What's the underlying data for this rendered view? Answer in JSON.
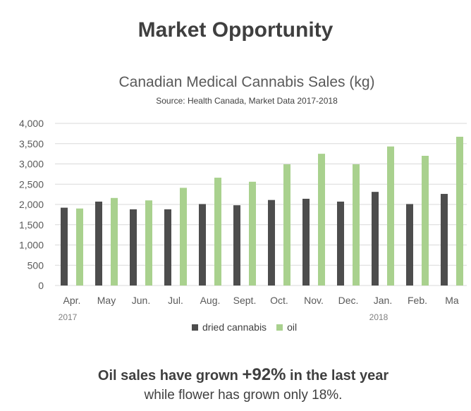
{
  "page": {
    "title": "Market Opportunity"
  },
  "footer": {
    "line1_start": "Oil sales have grown ",
    "line1_highlight": "+92%",
    "line1_end": " in the last year",
    "line2": "while flower has grown only 18%."
  },
  "colors": {
    "dried": "#4d4d4d",
    "oil": "#a9d18e",
    "grid": "#d9d9d9",
    "text": "#595959"
  },
  "chart_data": {
    "type": "bar",
    "title": "Canadian Medical Cannabis Sales (kg)",
    "subtitle": "Source: Health Canada, Market Data 2017-2018",
    "categories": [
      "Apr.",
      "May",
      "Jun.",
      "Jul.",
      "Aug.",
      "Sept.",
      "Oct.",
      "Nov.",
      "Dec.",
      "Jan.",
      "Feb.",
      "Ma"
    ],
    "year_labels": [
      {
        "category_index": 0,
        "label": "2017"
      },
      {
        "category_index": 9,
        "label": "2018"
      }
    ],
    "series": [
      {
        "name": "dried cannabis",
        "values": [
          1920,
          2070,
          1880,
          1880,
          2010,
          1980,
          2110,
          2140,
          2070,
          2310,
          2010,
          2260
        ]
      },
      {
        "name": "oil",
        "values": [
          1900,
          2160,
          2100,
          2410,
          2660,
          2560,
          2990,
          3250,
          2990,
          3430,
          3200,
          3670
        ]
      }
    ],
    "yticks": [
      "0",
      "500",
      "1,000",
      "1,500",
      "2,000",
      "2,500",
      "3,000",
      "3,500",
      "4,000"
    ],
    "ylim": [
      0,
      4000
    ],
    "grid": true,
    "legend_position": "bottom"
  }
}
